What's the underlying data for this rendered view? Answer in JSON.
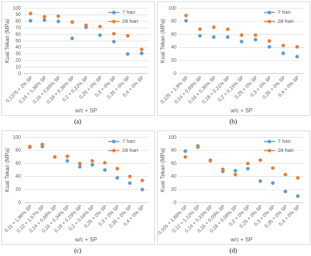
{
  "chart_data": [
    {
      "type": "scatter",
      "caption": "(a)",
      "ylabel": "Kuat Tekan (MPa)",
      "xlabel": "w/c + SP",
      "categories": [
        "0,1375 + 2% SP",
        "0,14 + 1,36% SP",
        "0,16 + 0,65% SP",
        "0,18 + 0,36% SP",
        "0,2 + 0,22% SP",
        "0,25 + 0% SP",
        "0,3 + 0% SP",
        "0,35 + 0% SP",
        "0,4 + 0% SP"
      ],
      "series": [
        {
          "name": "7 hari",
          "color": "#5b9bd5",
          "values": [
            81,
            82,
            80,
            54,
            71,
            59,
            49,
            30,
            31
          ]
        },
        {
          "name": "28 hari",
          "color": "#ed7d31",
          "values": [
            92,
            87,
            88,
            79,
            74,
            72,
            61,
            58,
            37
          ]
        }
      ],
      "ylim": [
        0,
        100
      ],
      "yticks": [
        0,
        10,
        20,
        30,
        40,
        50,
        60,
        70,
        80,
        90,
        100
      ],
      "grid": true,
      "legend": "top-right"
    },
    {
      "type": "scatter",
      "caption": "(b)",
      "ylabel": "Kuat Tekan (MPa)",
      "xlabel": "w/c + SP",
      "categories": [
        "0,125 + 1,8% SP",
        "0,14 + 0,69% SP",
        "0,16 + 0,35% SP",
        "0,18 + 0,21% SP",
        "0,2 + 0,15% SP",
        "0,25 + 0% SP",
        "0,3 + 0% SP",
        "0,35 + 0% SP",
        "0,4 + 0% SP"
      ],
      "series": [
        {
          "name": "7 hari",
          "color": "#5b9bd5",
          "values": [
            81,
            58,
            56,
            56,
            49,
            52,
            41,
            31,
            26
          ]
        },
        {
          "name": "28 hari",
          "color": "#ed7d31",
          "values": [
            89,
            68,
            71,
            68,
            59,
            59,
            50,
            43,
            41
          ]
        }
      ],
      "ylim": [
        0,
        100
      ],
      "yticks": [
        0,
        20,
        40,
        60,
        80,
        100
      ],
      "grid": true,
      "legend": "top-right"
    },
    {
      "type": "scatter",
      "caption": "(c)",
      "ylabel": "Kuat Tekan (MPa)",
      "xlabel": "w/c + SP",
      "categories": [
        "0,11 + 1,96% SP",
        "0,12 + 1,57% SP",
        "0,14 + 0,68% SP",
        "0,16 + 0,34% SP",
        "0,18 + 0,19% SP",
        "0,2 + 0,04% SP",
        "0,25 + 0% SP",
        "0,3 + 0% SP",
        "0,35 + 0% SP",
        "0,4 + 0% SP"
      ],
      "series": [
        {
          "name": "7 hari",
          "color": "#5b9bd5",
          "values": [
            85,
            86,
            70,
            64,
            55,
            58,
            50,
            38,
            30,
            20
          ]
        },
        {
          "name": "28 hari",
          "color": "#ed7d31",
          "values": [
            86,
            89,
            70,
            71,
            60,
            64,
            61,
            52,
            40,
            34
          ]
        }
      ],
      "ylim": [
        0,
        100
      ],
      "yticks": [
        0,
        20,
        40,
        60,
        80,
        100
      ],
      "grid": true,
      "legend": "top-right"
    },
    {
      "type": "scatter",
      "caption": "(d)",
      "ylabel": "Kuat Tekan (MPa)",
      "xlabel": "w/c + SP",
      "categories": [
        "0,105 + 1,69% SP",
        "0,12 + 1,12% SP",
        "0,14 + 0,33% SP",
        "0,16 + 0,09% SP",
        "0,18 + 0,08% SP",
        "0,2 + 0% SP",
        "0,25 + 0% SP",
        "0,3 + 0% SP",
        "0,35 + 0% SP",
        "0,4 + 0% SP"
      ],
      "series": [
        {
          "name": "7 hari",
          "color": "#5b9bd5",
          "values": [
            79,
            87,
            64,
            48,
            49,
            52,
            33,
            30,
            17,
            10
          ]
        },
        {
          "name": "28 hari",
          "color": "#ed7d31",
          "values": [
            70,
            85,
            65,
            51,
            43,
            60,
            65,
            53,
            43,
            38
          ]
        }
      ],
      "ylim": [
        0,
        100
      ],
      "yticks": [
        0,
        20,
        40,
        60,
        80,
        100
      ],
      "grid": true,
      "legend": "top-right"
    }
  ]
}
